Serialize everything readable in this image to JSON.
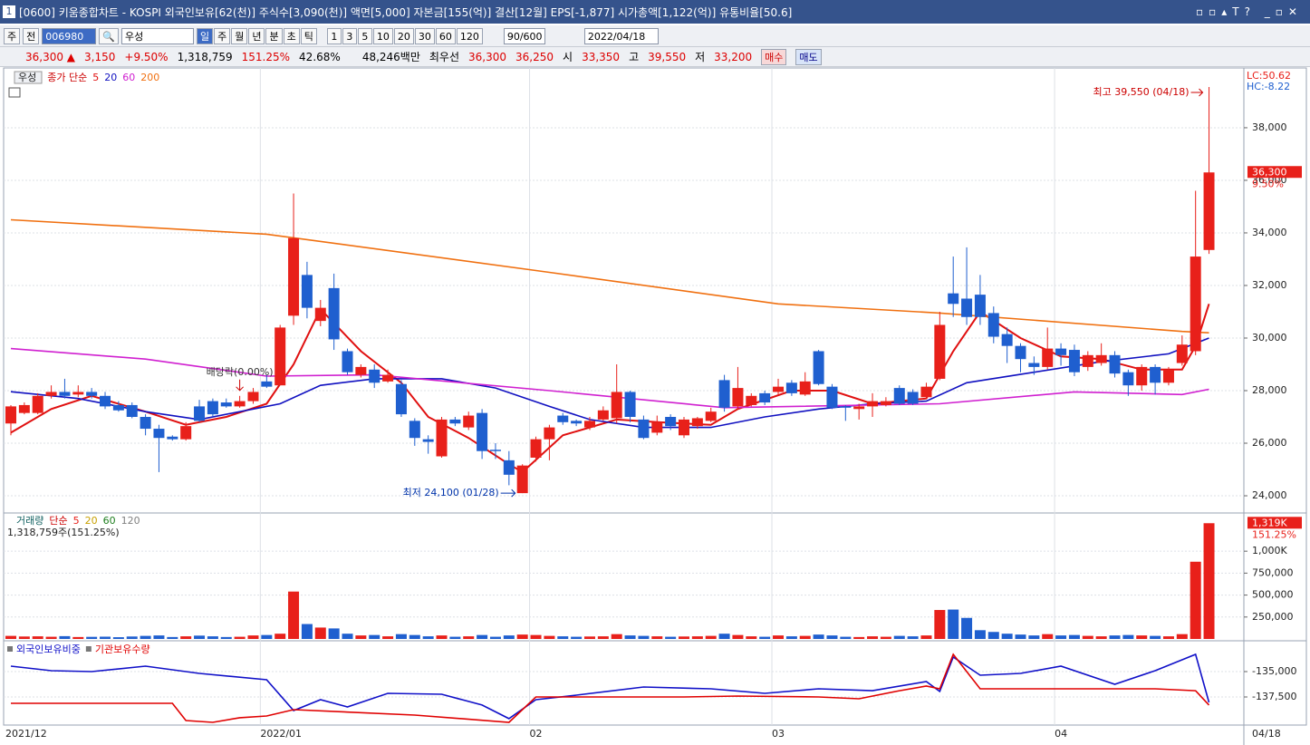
{
  "window": {
    "badge": "1",
    "title": "[0600] 키움종합차트 - KOSPI 외국인보유[62(천)] 주식수[3,090(천)] 액면[5,000] 자본금[155(억)] 결산[12월] EPS[-1,877] 시가총액[1,122(억)] 유통비율[50.6]"
  },
  "toolbar": {
    "period": "주",
    "prev": "전",
    "code": "006980",
    "name": "우성",
    "intervals": [
      "일",
      "주",
      "월",
      "년",
      "분",
      "초",
      "틱"
    ],
    "ticks": [
      "1",
      "3",
      "5",
      "10",
      "20",
      "30",
      "60",
      "120"
    ],
    "count": "90/600",
    "date": "2022/04/18"
  },
  "quote": {
    "price": "36,300 ▲",
    "change": "3,150",
    "rate": "+9.50%",
    "volume": "1,318,759",
    "volume_ratio": "151.25%",
    "foreign": "42.68%",
    "amount": "48,246백만",
    "best_label": "최우선",
    "ask": "36,300",
    "bid": "36,250",
    "open_label": "시",
    "open": "33,350",
    "high_label": "고",
    "high": "39,550",
    "low_label": "저",
    "low": "33,200",
    "buy": "매수",
    "sell": "매도"
  },
  "chart_data": [
    {
      "type": "candlestick",
      "title": "우성",
      "legend_prefix": "종가 단순",
      "up_color": "#e8201a",
      "down_color": "#1f5fcf",
      "open": [
        26750,
        27150,
        27150,
        27800,
        27950,
        27850,
        27950,
        27800,
        27450,
        27450,
        27000,
        26550,
        26250,
        26150,
        27400,
        27600,
        27550,
        27400,
        27600,
        28350,
        28200,
        30850,
        32400,
        30650,
        31900,
        29500,
        28600,
        28800,
        28350,
        28250,
        26850,
        26150,
        25500,
        26900,
        26600,
        27150,
        25750,
        25350,
        24100,
        25450,
        26150,
        27050,
        26850,
        26600,
        26900,
        26950,
        27950,
        26900,
        26400,
        27000,
        26300,
        26650,
        26850,
        28400,
        27400,
        27450,
        27900,
        27950,
        28300,
        27850,
        29500,
        28150,
        27400,
        27300,
        27400,
        27450,
        28100,
        27950,
        27750,
        28450,
        31700,
        31500,
        31650,
        30950,
        30150,
        29700,
        29050,
        28900,
        29600,
        29550,
        28900,
        29050,
        29350,
        28700,
        28200,
        28900,
        28300,
        29050,
        29500,
        33350
      ],
      "high": [
        27450,
        27550,
        27900,
        28200,
        28450,
        28200,
        28100,
        27950,
        27600,
        27550,
        27100,
        26700,
        26300,
        26800,
        27650,
        27700,
        27700,
        27800,
        28100,
        28600,
        30500,
        35500,
        32900,
        31450,
        32450,
        29600,
        29000,
        29000,
        28800,
        28400,
        26950,
        26300,
        27000,
        27000,
        27200,
        27300,
        26000,
        25700,
        25200,
        26250,
        26700,
        27150,
        26900,
        27000,
        27400,
        29000,
        28000,
        27050,
        27050,
        27100,
        27000,
        27000,
        27350,
        28600,
        28900,
        27900,
        28000,
        28450,
        28400,
        28700,
        29550,
        28250,
        27450,
        27500,
        27900,
        27750,
        28200,
        28050,
        28300,
        31000,
        33100,
        33450,
        32400,
        31200,
        30400,
        29800,
        29300,
        30400,
        29800,
        29750,
        29500,
        29800,
        29500,
        28800,
        29000,
        29000,
        28900,
        30100,
        35600,
        39550
      ],
      "low": [
        26300,
        27100,
        27100,
        27700,
        27700,
        27750,
        27700,
        27300,
        27200,
        26950,
        26300,
        24900,
        26100,
        26100,
        26800,
        27000,
        27350,
        27350,
        27500,
        28100,
        28200,
        30500,
        30750,
        30450,
        29550,
        28600,
        28500,
        28100,
        28300,
        27000,
        25900,
        25600,
        25450,
        26650,
        26500,
        25400,
        25400,
        24400,
        24100,
        25300,
        25350,
        26700,
        26650,
        26500,
        26850,
        26750,
        26800,
        26150,
        26300,
        26500,
        26200,
        26550,
        26800,
        27200,
        27300,
        27400,
        27450,
        27850,
        27800,
        27800,
        28200,
        27300,
        26850,
        26900,
        27000,
        27400,
        27450,
        27450,
        27700,
        28400,
        30800,
        30500,
        30500,
        29800,
        29050,
        28700,
        28600,
        28800,
        28950,
        28550,
        28750,
        28950,
        28500,
        27800,
        28000,
        27850,
        28200,
        28950,
        29350,
        33200
      ],
      "close": [
        27400,
        27450,
        27800,
        27950,
        27800,
        27950,
        27800,
        27400,
        27250,
        27000,
        26550,
        26200,
        26150,
        26650,
        26850,
        27100,
        27400,
        27600,
        27950,
        28150,
        30400,
        33800,
        31150,
        31150,
        29950,
        28700,
        28900,
        28300,
        28600,
        27100,
        26200,
        26050,
        26900,
        26750,
        27050,
        25700,
        25700,
        24800,
        25150,
        26150,
        26600,
        26800,
        26750,
        26850,
        27250,
        27950,
        27000,
        26200,
        26800,
        26650,
        26900,
        26950,
        27200,
        27350,
        28100,
        27800,
        27550,
        28150,
        27900,
        28350,
        28250,
        27350,
        27350,
        27400,
        27600,
        27600,
        27500,
        27500,
        28150,
        30500,
        31300,
        30800,
        30800,
        30050,
        29700,
        29200,
        28900,
        29600,
        29350,
        28700,
        29350,
        29350,
        28650,
        28200,
        28900,
        28300,
        28800,
        29750,
        33100,
        36300
      ],
      "series": [
        {
          "name": "5",
          "color": "#e01010",
          "x": [
            0,
            3,
            6,
            10,
            13,
            16,
            19,
            21,
            23,
            26,
            29,
            31,
            34,
            37,
            38,
            41,
            45,
            48,
            52,
            54,
            58,
            61,
            64,
            68,
            70,
            72,
            75,
            78,
            81,
            84,
            87,
            88,
            89
          ],
          "values": [
            26400,
            27300,
            27800,
            27200,
            26700,
            27000,
            27500,
            29000,
            31100,
            29500,
            28300,
            27000,
            26200,
            25200,
            24900,
            26300,
            26900,
            26800,
            26700,
            27300,
            28000,
            28000,
            27500,
            27700,
            29500,
            31000,
            30000,
            29300,
            29200,
            28800,
            28800,
            29700,
            31300
          ]
        },
        {
          "name": "20",
          "color": "#1010c0",
          "x": [
            0,
            5,
            10,
            14,
            18,
            20,
            23,
            27,
            32,
            36,
            40,
            43,
            47,
            52,
            56,
            60,
            64,
            68,
            71,
            76,
            81,
            86,
            89
          ],
          "values": [
            27960,
            27700,
            27200,
            26900,
            27300,
            27500,
            28200,
            28450,
            28450,
            28100,
            27400,
            26900,
            26600,
            26600,
            27000,
            27300,
            27500,
            27600,
            28300,
            28700,
            29100,
            29400,
            30000
          ]
        },
        {
          "name": "60",
          "color": "#d020d0",
          "x": [
            0,
            10,
            19,
            27,
            40,
            53,
            69,
            79,
            87,
            89
          ],
          "values": [
            29600,
            29200,
            28550,
            28600,
            28000,
            27350,
            27500,
            27950,
            27850,
            28050
          ]
        },
        {
          "name": "200",
          "color": "#f07010",
          "x": [
            0,
            19,
            40,
            57,
            69,
            87,
            89
          ],
          "values": [
            34500,
            33950,
            32500,
            31300,
            30950,
            30250,
            30200
          ]
        }
      ],
      "ylim": [
        23380,
        40170
      ],
      "yticks": [
        {
          "value": 24000,
          "label": "24,000"
        },
        {
          "value": 26000,
          "label": "26,000"
        },
        {
          "value": 28000,
          "label": "28,000"
        },
        {
          "value": 30000,
          "label": "30,000"
        },
        {
          "value": 32000,
          "label": "32,000"
        },
        {
          "value": 34000,
          "label": "34,000"
        },
        {
          "value": 36000,
          "label": "36,000"
        },
        {
          "value": 38000,
          "label": "38,000"
        }
      ],
      "last_label": "36,300",
      "last_rate": "9.50%",
      "lc": "LC:50.62",
      "hc": "HC:-8.22",
      "annotations": [
        {
          "text": "최고 39,550 (04/18)",
          "index": 89,
          "at": "high"
        },
        {
          "text": "최저 24,100 (01/28)",
          "index": 38,
          "at": "low"
        },
        {
          "text": "배당락(0.00%)",
          "index": 17,
          "at": "mark"
        }
      ],
      "x_labels": [
        {
          "index": 0,
          "label": "2021/12"
        },
        {
          "index": 19,
          "label": "2022/01"
        },
        {
          "index": 39,
          "label": "02"
        },
        {
          "index": 57,
          "label": "03"
        },
        {
          "index": 78,
          "label": "04"
        }
      ],
      "last_date": "04/18"
    },
    {
      "type": "bar",
      "title": "거래량",
      "legend_prefix": "단순",
      "legend_items": [
        {
          "name": "5",
          "color": "#e8201a"
        },
        {
          "name": "20",
          "color": "#c8a000"
        },
        {
          "name": "60",
          "color": "#208020"
        },
        {
          "name": "120",
          "color": "#808080"
        }
      ],
      "values": [
        35000,
        28000,
        30000,
        25000,
        32000,
        22000,
        24000,
        26000,
        20000,
        28000,
        35000,
        40000,
        22000,
        30000,
        38000,
        30000,
        22000,
        25000,
        40000,
        45000,
        60000,
        540000,
        170000,
        130000,
        120000,
        60000,
        40000,
        45000,
        30000,
        55000,
        45000,
        30000,
        40000,
        25000,
        30000,
        45000,
        25000,
        40000,
        50000,
        45000,
        35000,
        30000,
        25000,
        28000,
        30000,
        55000,
        40000,
        35000,
        30000,
        25000,
        28000,
        30000,
        35000,
        60000,
        45000,
        30000,
        25000,
        40000,
        30000,
        35000,
        50000,
        40000,
        25000,
        22000,
        30000,
        25000,
        35000,
        30000,
        40000,
        330000,
        335000,
        240000,
        100000,
        80000,
        60000,
        50000,
        40000,
        55000,
        40000,
        45000,
        35000,
        30000,
        40000,
        45000,
        40000,
        35000,
        30000,
        55000,
        880000,
        1318759
      ],
      "ylim": [
        0,
        1425000
      ],
      "yticks": [
        {
          "value": 250000,
          "label": "250,000"
        },
        {
          "value": 500000,
          "label": "500,000"
        },
        {
          "value": 750000,
          "label": "750,000"
        },
        {
          "value": 1000000,
          "label": "1,000K"
        }
      ],
      "value_label": "1,318,759주(151.25%)",
      "last_label": "1,319K",
      "last_rate": "151.25%"
    },
    {
      "type": "line",
      "series": [
        {
          "name": "외국인보유비중",
          "color": "#1010c8",
          "x": [
            0,
            3,
            6,
            10,
            14,
            19,
            21,
            23,
            25,
            28,
            32,
            35,
            37,
            39,
            42,
            47,
            52,
            56,
            60,
            64,
            68,
            69,
            70,
            72,
            75,
            78,
            82,
            85,
            88,
            89
          ],
          "values": [
            -134460,
            -134910,
            -135000,
            -134460,
            -135180,
            -135800,
            -138840,
            -137770,
            -138480,
            -137140,
            -137230,
            -138300,
            -139640,
            -137770,
            -137320,
            -136520,
            -136700,
            -137140,
            -136700,
            -136880,
            -135980,
            -136960,
            -133570,
            -135360,
            -135180,
            -134460,
            -136250,
            -134910,
            -133300,
            -138040
          ]
        },
        {
          "name": "기관보유수량",
          "color": "#e00000",
          "x": [
            0,
            12,
            13,
            15,
            17,
            19,
            21,
            30,
            37,
            39,
            42,
            46,
            50,
            54,
            60,
            63,
            66,
            68,
            69,
            70,
            72,
            85,
            88,
            89
          ],
          "values": [
            -138130,
            -138130,
            -139820,
            -140000,
            -139550,
            -139380,
            -138750,
            -139290,
            -140000,
            -137500,
            -137500,
            -137500,
            -137500,
            -137410,
            -137500,
            -137680,
            -136880,
            -136430,
            -136700,
            -133300,
            -136700,
            -136700,
            -136880,
            -138300
          ]
        }
      ],
      "ylim": [
        -140270,
        -132230
      ],
      "yticks": [
        {
          "value": -135000,
          "label": "-135,000"
        },
        {
          "value": -137500,
          "label": "-137,500"
        }
      ]
    }
  ]
}
